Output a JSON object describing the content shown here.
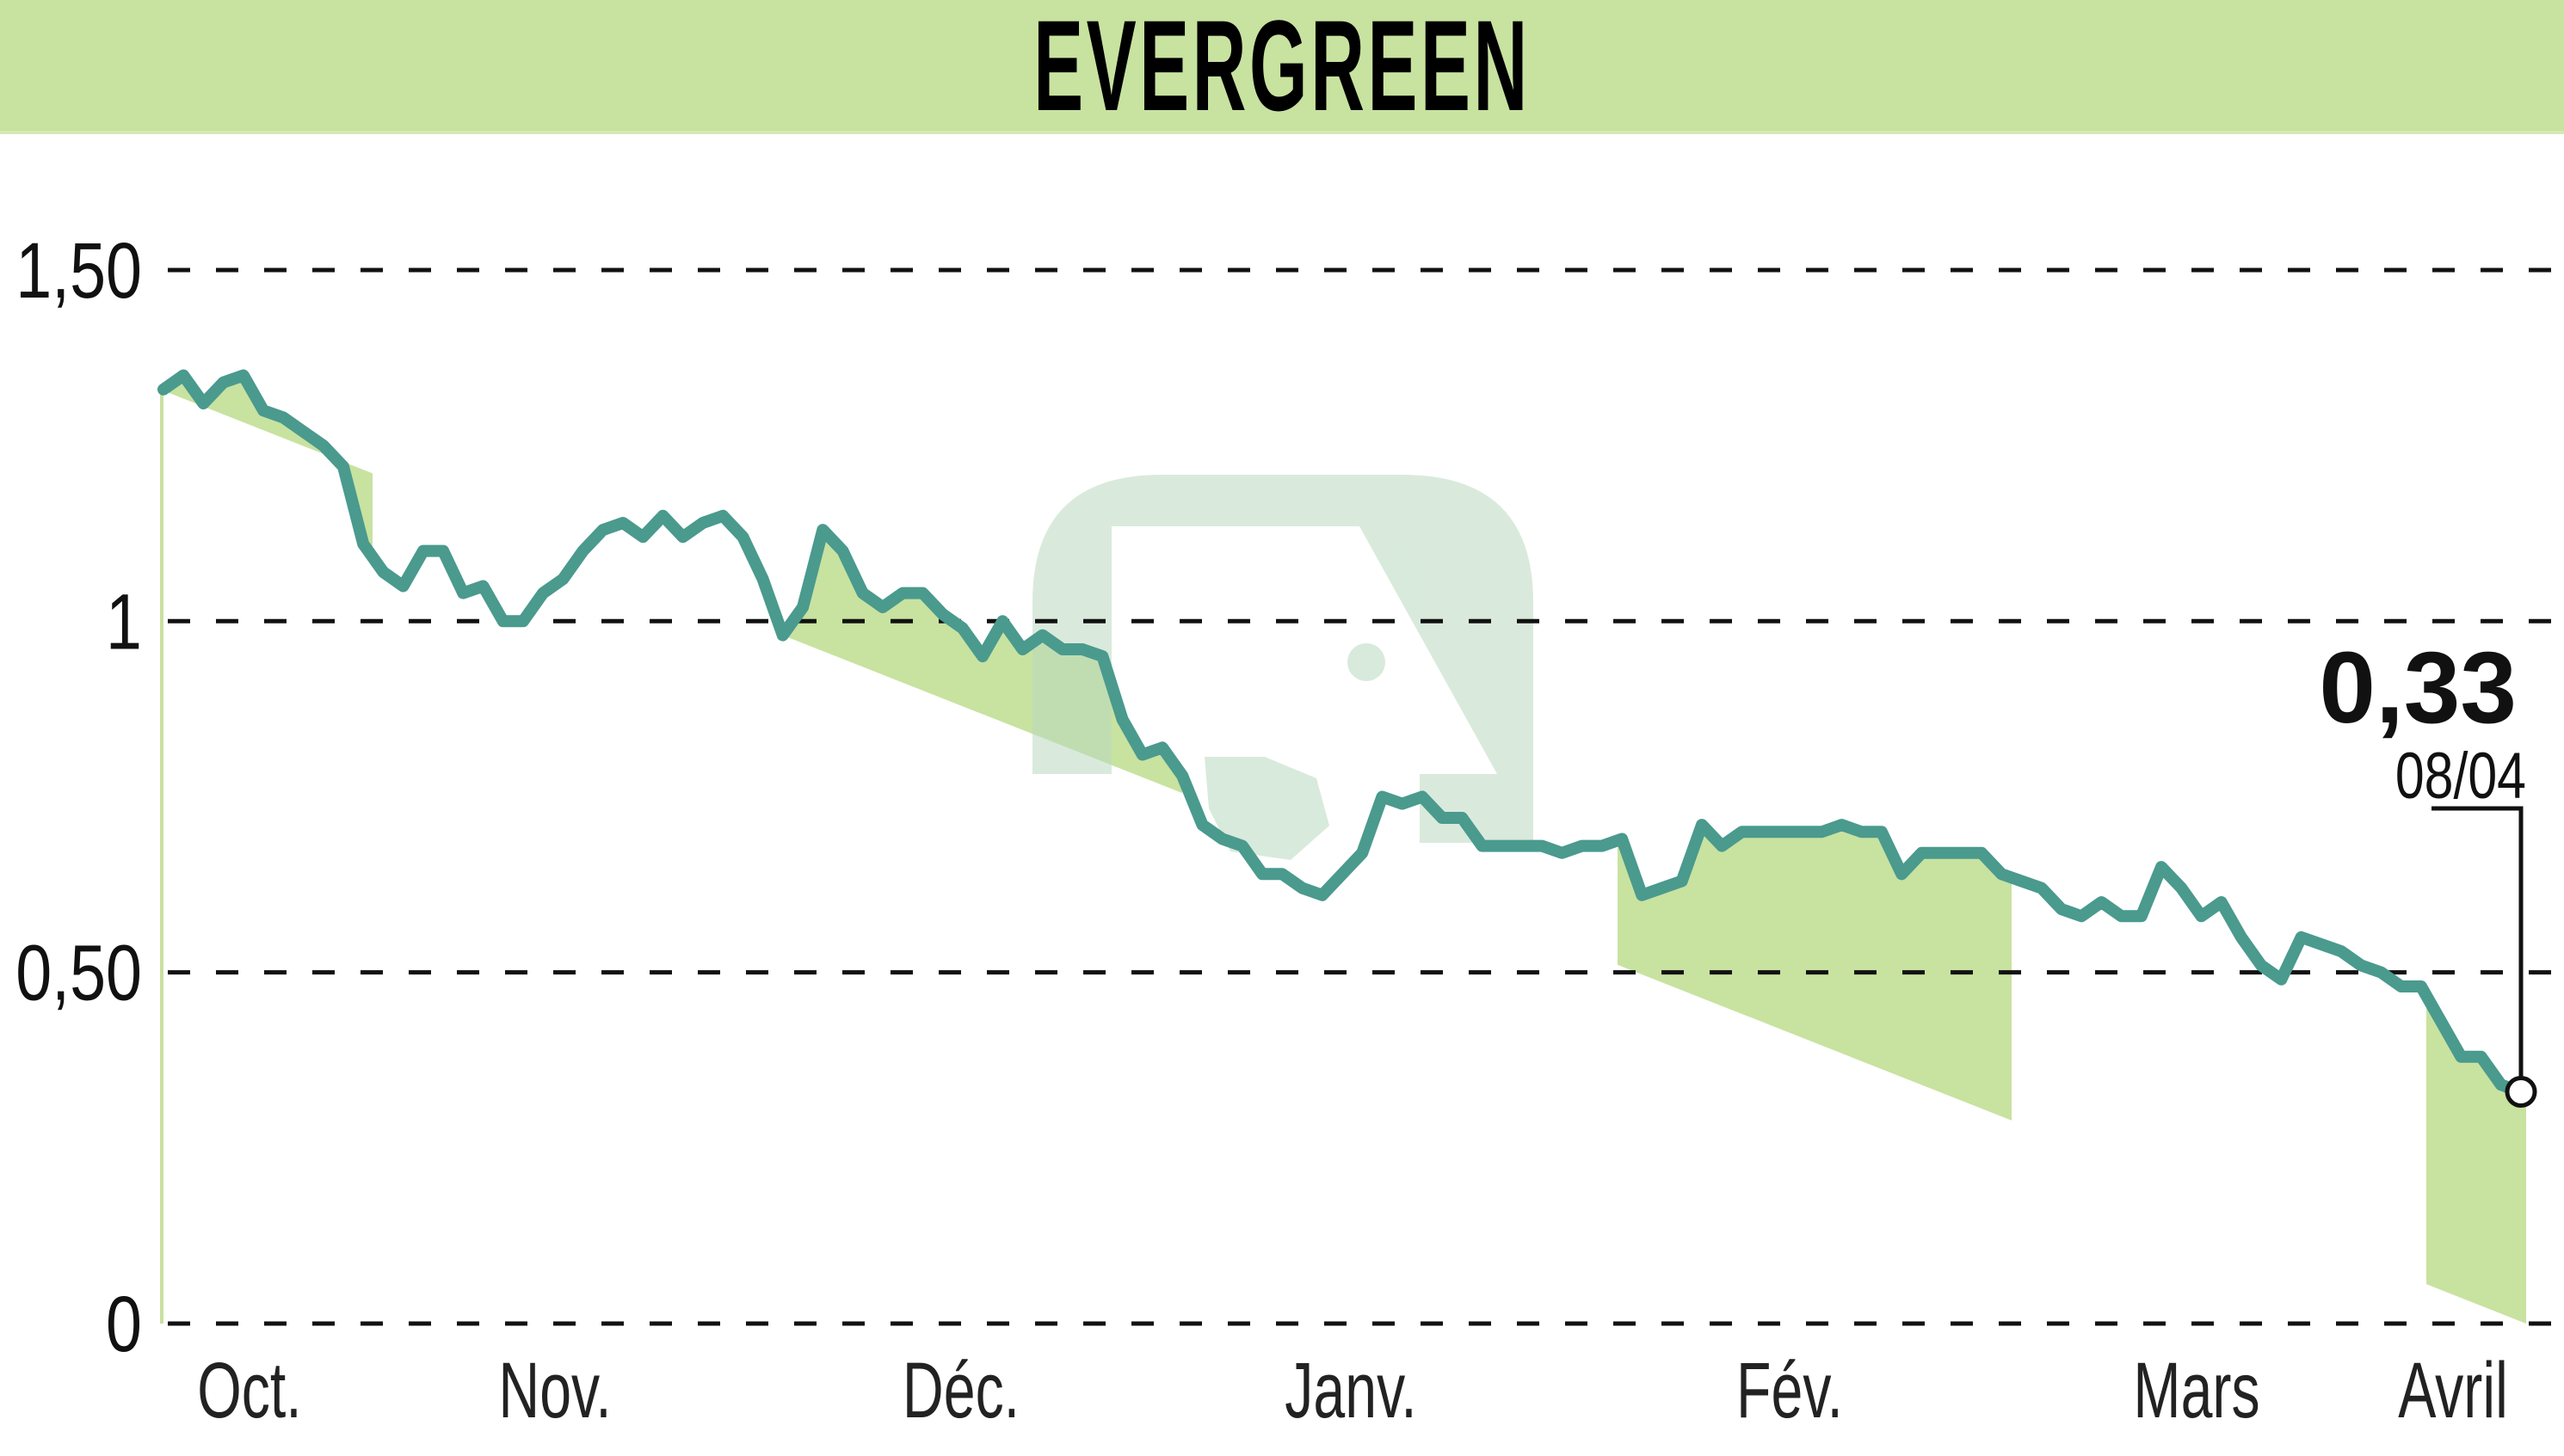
{
  "header": {
    "title": "EVERGREEN"
  },
  "colors": {
    "header_bg": "#c8e2a0",
    "band_fill": "#c8e2a0",
    "line": "#4a9a8e",
    "watermark": "#cfe3d0",
    "grid": "#111111"
  },
  "y_axis": {
    "ticks": [
      {
        "value": 1.5,
        "label": "1,50"
      },
      {
        "value": 1,
        "label": "1"
      },
      {
        "value": 0.5,
        "label": "0,50"
      },
      {
        "value": 0,
        "label": "0"
      }
    ]
  },
  "x_axis": {
    "months": [
      "Oct.",
      "Nov.",
      "Déc.",
      "Janv.",
      "Fév.",
      "Mars",
      "Avril"
    ]
  },
  "annotation": {
    "last_value": "0,33",
    "last_date": "08/04"
  },
  "chart_data": {
    "type": "line",
    "title": "EVERGREEN",
    "xlabel": "",
    "ylabel": "",
    "ylim": [
      0,
      1.5
    ],
    "grid": "horizontal dashed",
    "y_ticks": [
      0,
      0.5,
      1,
      1.5
    ],
    "y_tick_labels": [
      "0",
      "0,50",
      "1",
      "1,50"
    ],
    "x_tick_labels": [
      "Oct.",
      "Nov.",
      "Déc.",
      "Janv.",
      "Fév.",
      "Mars",
      "Avril"
    ],
    "shaded_months": [
      "Oct.",
      "Déc.",
      "Fév.",
      "Avril"
    ],
    "last_point": {
      "value": 0.33,
      "label": "0,33",
      "date": "08/04"
    },
    "series": [
      {
        "name": "EVERGREEN",
        "values": [
          1.33,
          1.35,
          1.31,
          1.34,
          1.35,
          1.3,
          1.29,
          1.27,
          1.25,
          1.22,
          1.11,
          1.07,
          1.05,
          1.1,
          1.1,
          1.04,
          1.05,
          1.0,
          1.0,
          1.04,
          1.06,
          1.1,
          1.13,
          1.14,
          1.12,
          1.15,
          1.12,
          1.14,
          1.15,
          1.12,
          1.06,
          0.98,
          1.02,
          1.13,
          1.1,
          1.04,
          1.02,
          1.04,
          1.04,
          1.01,
          0.99,
          0.95,
          1.0,
          0.96,
          0.98,
          0.96,
          0.96,
          0.95,
          0.86,
          0.81,
          0.82,
          0.78,
          0.71,
          0.69,
          0.68,
          0.64,
          0.64,
          0.62,
          0.61,
          0.64,
          0.67,
          0.75,
          0.74,
          0.75,
          0.72,
          0.72,
          0.68,
          0.68,
          0.68,
          0.68,
          0.67,
          0.68,
          0.68,
          0.69,
          0.61,
          0.62,
          0.63,
          0.71,
          0.68,
          0.7,
          0.7,
          0.7,
          0.7,
          0.7,
          0.71,
          0.7,
          0.7,
          0.64,
          0.67,
          0.67,
          0.67,
          0.67,
          0.64,
          0.63,
          0.62,
          0.59,
          0.58,
          0.6,
          0.58,
          0.58,
          0.65,
          0.62,
          0.58,
          0.6,
          0.55,
          0.51,
          0.49,
          0.55,
          0.54,
          0.53,
          0.51,
          0.5,
          0.48,
          0.48,
          0.43,
          0.38,
          0.38,
          0.34,
          0.33
        ]
      }
    ]
  }
}
